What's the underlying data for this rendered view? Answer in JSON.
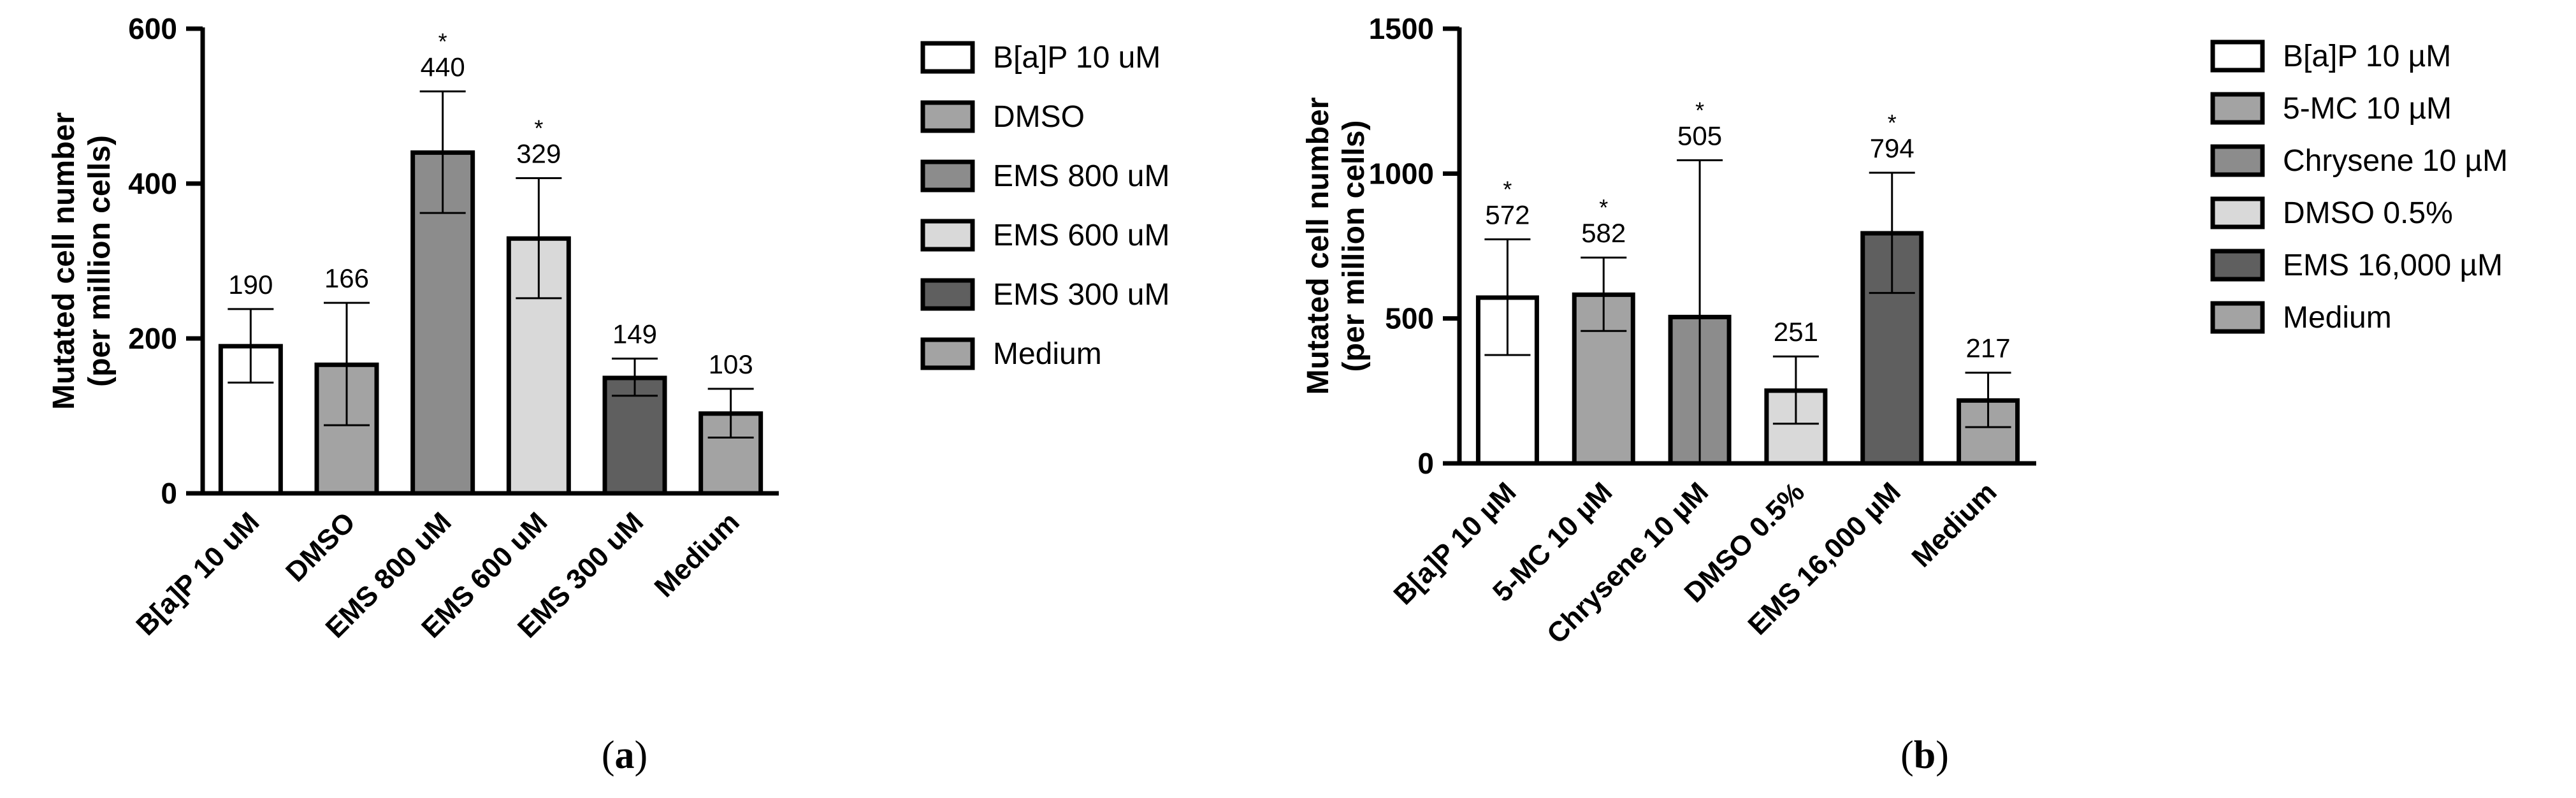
{
  "chart_data": [
    {
      "type": "bar",
      "panel_label": "(a)",
      "panel_letter": "a",
      "ylabel_line1": "Mutated cell number",
      "ylabel_line2": "(per million cells)",
      "ylim": [
        0,
        600
      ],
      "yticks": [
        0,
        200,
        400,
        600
      ],
      "categories": [
        "B[a]P 10 uM",
        "DMSO",
        "EMS 800 uM",
        "EMS 600 uM",
        "EMS 300 uM",
        "Medium"
      ],
      "values": [
        190,
        166,
        440,
        329,
        149,
        103
      ],
      "value_labels": [
        "190",
        "166",
        "440",
        "329",
        "149",
        "103"
      ],
      "error_upper": [
        238,
        246,
        519,
        407,
        174,
        135
      ],
      "error_lower": [
        143,
        88,
        362,
        252,
        126,
        72
      ],
      "significant": [
        false,
        false,
        true,
        true,
        false,
        false
      ],
      "significance_marker": "*",
      "colors": [
        "#ffffff",
        "#a3a3a3",
        "#8c8c8c",
        "#d9d9d9",
        "#5f5f5f",
        "#a3a3a3"
      ],
      "legend": {
        "placement": "right",
        "entries": [
          "B[a]P 10 uM",
          "DMSO",
          "EMS 800 uM",
          "EMS 600 uM",
          "EMS 300 uM",
          "Medium"
        ]
      },
      "grid": false
    },
    {
      "type": "bar",
      "panel_label": "(b)",
      "panel_letter": "b",
      "ylabel_line1": "Mutated cell number",
      "ylabel_line2": "(per million cells)",
      "ylim": [
        0,
        1500
      ],
      "yticks": [
        0,
        500,
        1000,
        1500
      ],
      "categories": [
        "B[a]P 10 µM",
        "5-MC 10 µM",
        "Chrysene 10 µM",
        "DMSO 0.5%",
        "EMS 16,000 µM",
        "Medium"
      ],
      "values": [
        572,
        582,
        505,
        251,
        794,
        217
      ],
      "value_labels": [
        "572",
        "582",
        "505",
        "251",
        "794",
        "217"
      ],
      "error_upper": [
        773,
        710,
        1046,
        369,
        1003,
        313
      ],
      "error_lower": [
        374,
        457,
        0,
        137,
        588,
        125
      ],
      "significant": [
        true,
        true,
        true,
        false,
        true,
        false
      ],
      "significance_marker": "*",
      "colors": [
        "#ffffff",
        "#a3a3a3",
        "#8c8c8c",
        "#d9d9d9",
        "#5f5f5f",
        "#a3a3a3"
      ],
      "legend": {
        "placement": "right",
        "entries": [
          "B[a]P 10 µM",
          "5-MC 10 µM",
          "Chrysene 10 µM",
          "DMSO 0.5%",
          "EMS 16,000 µM",
          "Medium"
        ]
      },
      "grid": false
    }
  ]
}
